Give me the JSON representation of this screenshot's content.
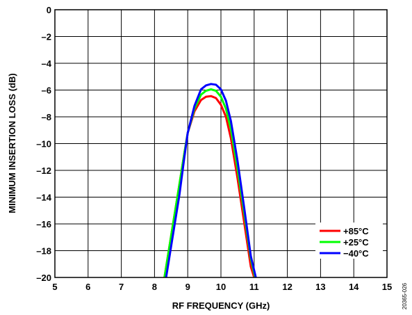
{
  "chart_data": {
    "type": "line",
    "xlabel": "RF FREQUENCY (GHz)",
    "ylabel": "MINIMUM INSERTION LOSS (dB)",
    "xlim": [
      5,
      15
    ],
    "ylim": [
      -20,
      0
    ],
    "x_ticks": [
      5,
      6,
      7,
      8,
      9,
      10,
      11,
      12,
      13,
      14,
      15
    ],
    "y_ticks": [
      0,
      -2,
      -4,
      -6,
      -8,
      -10,
      -12,
      -14,
      -16,
      -18,
      -20
    ],
    "y_tick_labels": [
      "0",
      "–2",
      "–4",
      "–6",
      "–8",
      "–10",
      "–12",
      "–14",
      "–16",
      "–18",
      "–20"
    ],
    "grid": true,
    "legend_position": "bottom-right",
    "figure_id": "20365-026",
    "series": [
      {
        "name": "+85°C",
        "color": "#ff0000",
        "x": [
          8.3,
          8.5,
          8.7,
          8.9,
          9.0,
          9.2,
          9.4,
          9.55,
          9.7,
          9.85,
          10.0,
          10.15,
          10.3,
          10.5,
          10.7,
          10.9,
          11.0
        ],
        "y": [
          -20,
          -16.9,
          -13.8,
          -10.7,
          -9.2,
          -7.6,
          -6.75,
          -6.5,
          -6.45,
          -6.6,
          -7.1,
          -8.0,
          -9.6,
          -12.6,
          -15.9,
          -19.2,
          -20
        ]
      },
      {
        "name": "+25°C",
        "color": "#00ff00",
        "x": [
          8.3,
          8.5,
          8.7,
          8.9,
          9.0,
          9.2,
          9.4,
          9.55,
          9.7,
          9.85,
          10.0,
          10.15,
          10.3,
          10.5,
          10.7,
          10.9,
          11.03
        ],
        "y": [
          -20,
          -16.9,
          -13.8,
          -10.7,
          -9.2,
          -7.4,
          -6.35,
          -6.05,
          -5.95,
          -6.05,
          -6.5,
          -7.4,
          -8.9,
          -11.9,
          -15.2,
          -18.6,
          -20
        ]
      },
      {
        "name": "−40°C",
        "color": "#0000ff",
        "x": [
          8.35,
          8.55,
          8.75,
          8.9,
          9.0,
          9.2,
          9.4,
          9.55,
          9.7,
          9.85,
          10.0,
          10.15,
          10.3,
          10.5,
          10.7,
          10.9,
          11.05
        ],
        "y": [
          -20,
          -16.9,
          -13.8,
          -11.0,
          -9.2,
          -7.2,
          -5.95,
          -5.65,
          -5.55,
          -5.6,
          -5.95,
          -6.8,
          -8.3,
          -11.3,
          -14.8,
          -18.4,
          -20
        ]
      }
    ]
  }
}
